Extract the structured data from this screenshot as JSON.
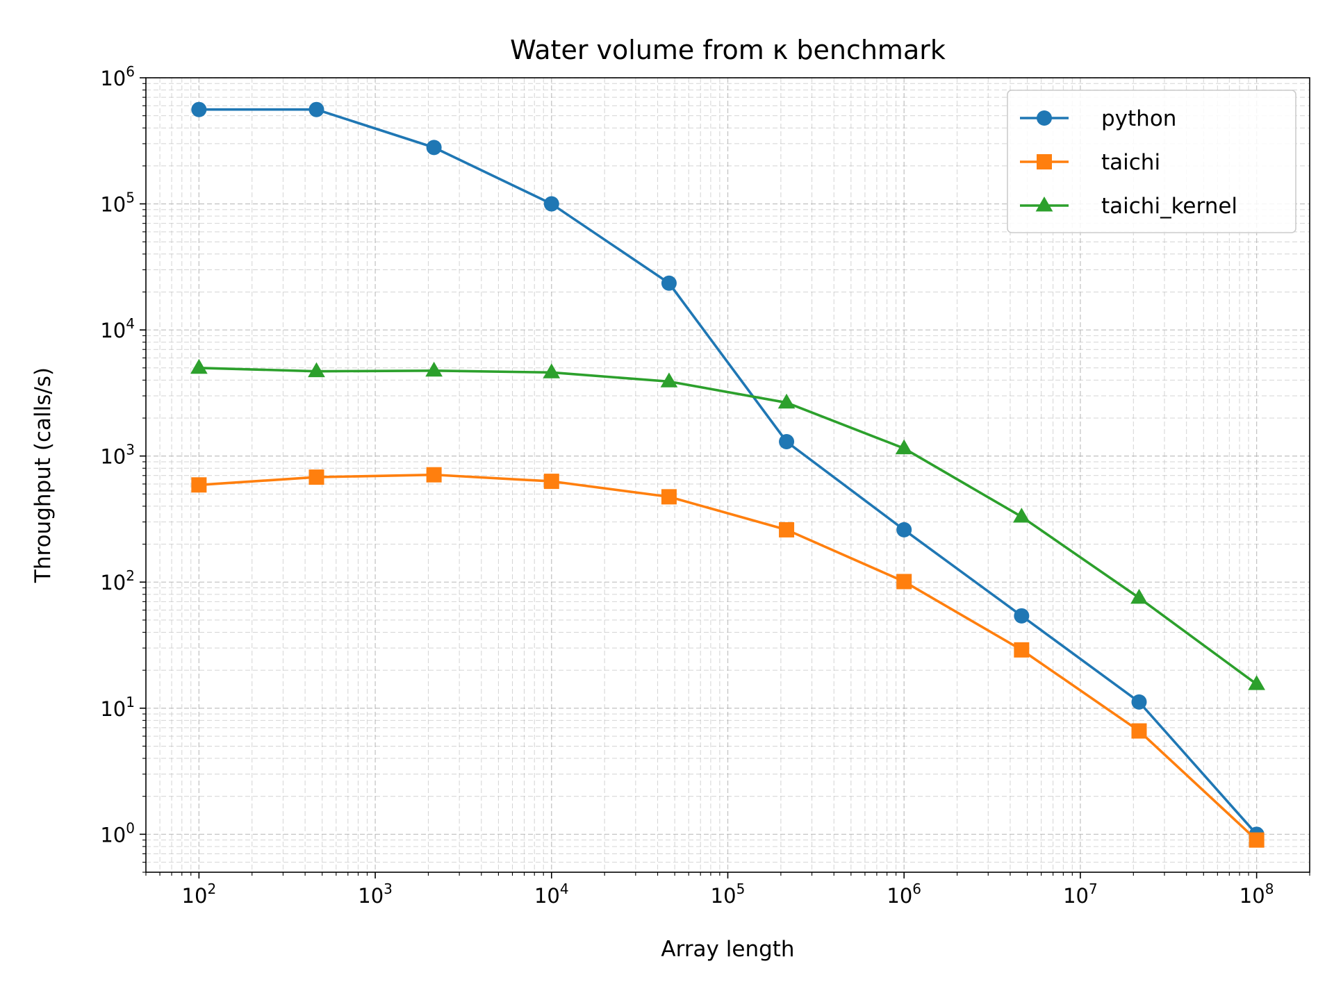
{
  "chart_data": {
    "type": "line",
    "title": "Water volume from κ benchmark",
    "xlabel": "Array length",
    "ylabel": "Throughput (calls/s)",
    "xscale": "log",
    "yscale": "log",
    "xlim": [
      50,
      200000000
    ],
    "ylim": [
      0.5,
      1000000
    ],
    "grid": true,
    "legend_position": "top-right",
    "x_ticks": [
      {
        "base": "10",
        "exp": "2",
        "value": 100
      },
      {
        "base": "10",
        "exp": "3",
        "value": 1000
      },
      {
        "base": "10",
        "exp": "4",
        "value": 10000
      },
      {
        "base": "10",
        "exp": "5",
        "value": 100000
      },
      {
        "base": "10",
        "exp": "6",
        "value": 1000000
      },
      {
        "base": "10",
        "exp": "7",
        "value": 10000000
      },
      {
        "base": "10",
        "exp": "8",
        "value": 100000000
      }
    ],
    "y_ticks": [
      {
        "base": "10",
        "exp": "0",
        "value": 1
      },
      {
        "base": "10",
        "exp": "1",
        "value": 10
      },
      {
        "base": "10",
        "exp": "2",
        "value": 100
      },
      {
        "base": "10",
        "exp": "3",
        "value": 1000
      },
      {
        "base": "10",
        "exp": "4",
        "value": 10000
      },
      {
        "base": "10",
        "exp": "5",
        "value": 100000
      },
      {
        "base": "10",
        "exp": "6",
        "value": 1000000
      }
    ],
    "x": [
      100,
      464,
      2154,
      10000,
      46416,
      215443,
      1000000,
      4641589,
      21544347,
      100000000
    ],
    "series": [
      {
        "name": "python",
        "color": "#1f77b4",
        "marker": "circle",
        "values": [
          560000,
          560000,
          280000,
          100000,
          23500,
          1300,
          260,
          54,
          11.2,
          1.0
        ]
      },
      {
        "name": "taichi",
        "color": "#ff7f0e",
        "marker": "square",
        "values": [
          590,
          680,
          710,
          630,
          475,
          260,
          101,
          29,
          6.6,
          0.9
        ]
      },
      {
        "name": "taichi_kernel",
        "color": "#2ca02c",
        "marker": "triangle",
        "values": [
          5000,
          4700,
          4750,
          4600,
          3900,
          2650,
          1150,
          330,
          75,
          15.5
        ]
      }
    ]
  }
}
